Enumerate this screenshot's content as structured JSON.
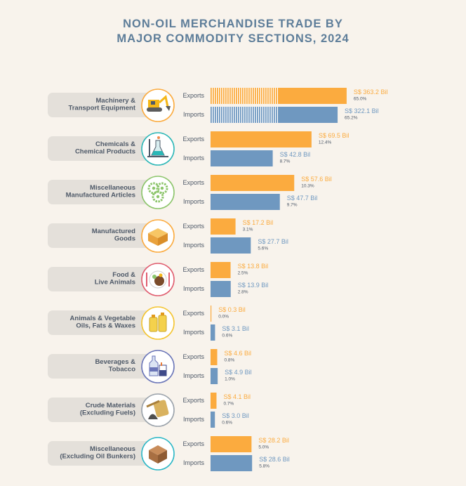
{
  "title": {
    "line1": "NON-OIL MERCHANDISE TRADE BY",
    "line2": "MAJOR COMMODITY SECTIONS, 2024"
  },
  "colors": {
    "exports": "#fbab3f",
    "imports": "#6f98c0",
    "label_bg": "#e4e0da",
    "text": "#4e5968",
    "title": "#5d7d99"
  },
  "chart_data": {
    "type": "bar",
    "orientation": "horizontal",
    "title": "NON-OIL MERCHANDISE TRADE BY MAJOR COMMODITY SECTIONS, 2024",
    "unit": "S$ Bil",
    "series": [
      {
        "name": "Exports",
        "values": [
          363.2,
          69.5,
          57.6,
          17.2,
          13.8,
          0.3,
          4.6,
          4.1,
          28.2
        ]
      },
      {
        "name": "Imports",
        "values": [
          322.1,
          42.8,
          47.7,
          27.7,
          13.9,
          3.1,
          4.9,
          3.0,
          28.6
        ]
      }
    ],
    "categories": [
      {
        "lines": [
          "Machinery &",
          "Transport Equipment"
        ],
        "icon": "excavator-icon",
        "ring": "#fbab3f",
        "exports": {
          "value": 363.2,
          "label": "S$ 363.2 Bil",
          "share": "65.0%"
        },
        "imports": {
          "value": 322.1,
          "label": "S$ 322.1 Bil",
          "share": "65.2%"
        },
        "broken_axis": true
      },
      {
        "lines": [
          "Chemicals &",
          "Chemical Products"
        ],
        "icon": "flask-icon",
        "ring": "#2bb7b7",
        "exports": {
          "value": 69.5,
          "label": "S$ 69.5 Bil",
          "share": "12.4%"
        },
        "imports": {
          "value": 42.8,
          "label": "S$ 42.8 Bil",
          "share": "8.7%"
        }
      },
      {
        "lines": [
          "Miscellaneous",
          "Manufactured Articles"
        ],
        "icon": "gears-icon",
        "ring": "#8cc56b",
        "exports": {
          "value": 57.6,
          "label": "S$ 57.6 Bil",
          "share": "10.3%"
        },
        "imports": {
          "value": 47.7,
          "label": "S$ 47.7 Bil",
          "share": "9.7%"
        }
      },
      {
        "lines": [
          "Manufactured",
          "Goods"
        ],
        "icon": "box-icon",
        "ring": "#fbab3f",
        "exports": {
          "value": 17.2,
          "label": "S$ 17.2 Bil",
          "share": "3.1%"
        },
        "imports": {
          "value": 27.7,
          "label": "S$ 27.7 Bil",
          "share": "5.6%"
        }
      },
      {
        "lines": [
          "Food &",
          "Live Animals"
        ],
        "icon": "food-plate-icon",
        "ring": "#e05d6f",
        "exports": {
          "value": 13.8,
          "label": "S$ 13.8 Bil",
          "share": "2.5%"
        },
        "imports": {
          "value": 13.9,
          "label": "S$ 13.9 Bil",
          "share": "2.8%"
        }
      },
      {
        "lines": [
          "Animals & Vegetable",
          "Oils, Fats & Waxes"
        ],
        "icon": "oil-bottles-icon",
        "ring": "#f4c531",
        "exports": {
          "value": 0.3,
          "label": "S$ 0.3 Bil",
          "share": "0.0%"
        },
        "imports": {
          "value": 3.1,
          "label": "S$ 3.1 Bil",
          "share": "0.6%"
        }
      },
      {
        "lines": [
          "Beverages &",
          "Tobacco"
        ],
        "icon": "bottle-cigarette-icon",
        "ring": "#6a75b8",
        "exports": {
          "value": 4.6,
          "label": "S$ 4.6 Bil",
          "share": "0.8%"
        },
        "imports": {
          "value": 4.9,
          "label": "S$ 4.9 Bil",
          "share": "1.0%"
        }
      },
      {
        "lines": [
          "Crude Materials",
          "(Excluding Fuels)"
        ],
        "icon": "raw-materials-icon",
        "ring": "#9aa2aa",
        "exports": {
          "value": 4.1,
          "label": "S$ 4.1 Bil",
          "share": "0.7%"
        },
        "imports": {
          "value": 3.0,
          "label": "S$ 3.0 Bil",
          "share": "0.6%"
        }
      },
      {
        "lines": [
          "Miscellaneous",
          "(Excluding Oil Bunkers)"
        ],
        "icon": "crate-icon",
        "ring": "#2bb7c6",
        "exports": {
          "value": 28.2,
          "label": "S$ 28.2 Bil",
          "share": "5.0%"
        },
        "imports": {
          "value": 28.6,
          "label": "S$ 28.6 Bil",
          "share": "5.8%"
        }
      }
    ]
  }
}
